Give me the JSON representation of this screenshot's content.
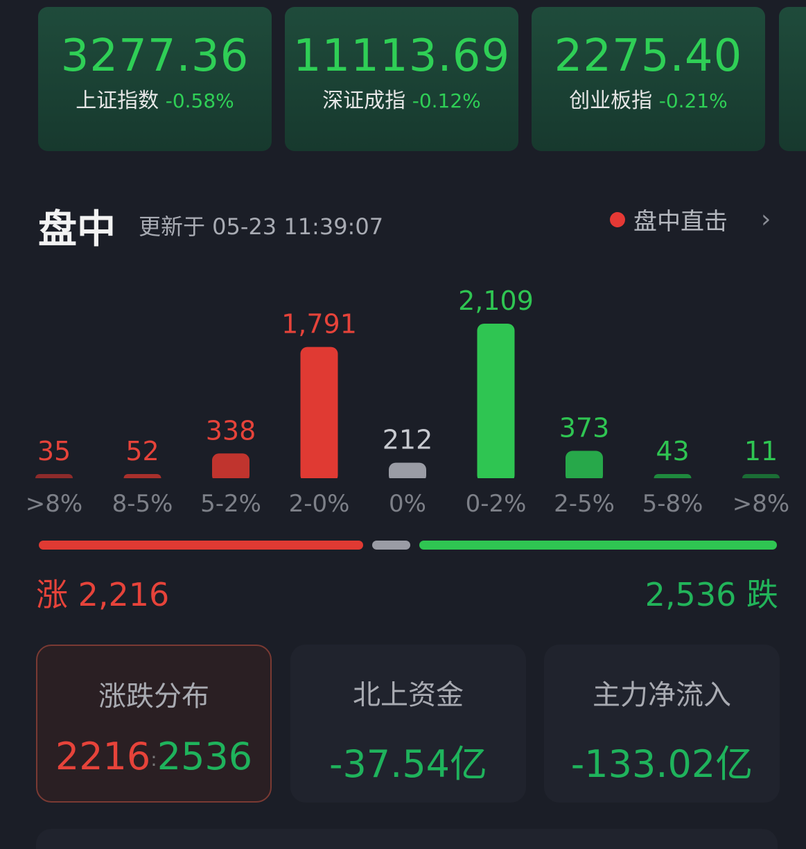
{
  "indices": [
    {
      "value": "3277.36",
      "name": "上证指数",
      "change": "-0.58%"
    },
    {
      "value": "11113.69",
      "name": "深证成指",
      "change": "-0.12%"
    },
    {
      "value": "2275.40",
      "name": "创业板指",
      "change": "-0.21%"
    }
  ],
  "header": {
    "title": "盘中",
    "updated": "更新于 05-23 11:39:07",
    "live_label": "盘中直击",
    "chevron": "›"
  },
  "chart_data": {
    "type": "bar",
    "categories": [
      ">8%",
      "8-5%",
      "5-2%",
      "2-0%",
      "0%",
      "0-2%",
      "2-5%",
      "5-8%",
      ">8%"
    ],
    "values": [
      35,
      52,
      338,
      1791,
      212,
      2109,
      373,
      43,
      11
    ],
    "value_labels": [
      "35",
      "52",
      "338",
      "1,791",
      "212",
      "2,109",
      "373",
      "43",
      "11"
    ],
    "colors": [
      "#8e2b2b",
      "#a8302c",
      "#c0342e",
      "#e03a33",
      "#9a9ca5",
      "#2fc552",
      "#27a84a",
      "#1f8a3e",
      "#1b6d35"
    ],
    "label_colors": [
      "#e6433a",
      "#e6433a",
      "#e6433a",
      "#e6433a",
      "#c8cad0",
      "#2fc552",
      "#2fc552",
      "#2fc552",
      "#2fc552"
    ]
  },
  "summary": {
    "up_label": "涨",
    "up_count": "2,216",
    "down_label": "跌",
    "down_count": "2,536"
  },
  "boxes": [
    {
      "label": "涨跌分布",
      "up": "2216",
      "sep": ":",
      "down": "2536"
    },
    {
      "label": "北上资金",
      "value": "-37.54亿"
    },
    {
      "label": "主力净流入",
      "value": "-133.02亿"
    }
  ],
  "colors": {
    "up": "#e6433a",
    "down": "#2fc552",
    "flat": "#9a9ca5",
    "background": "#1b1e27"
  }
}
